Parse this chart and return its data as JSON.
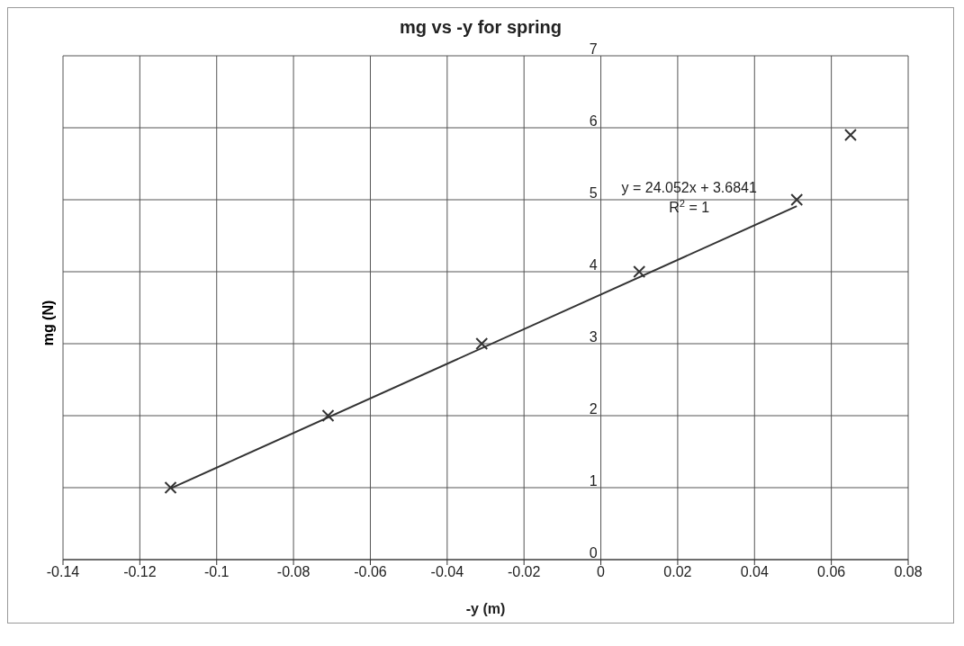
{
  "chart_data": {
    "type": "scatter",
    "title": "mg vs -y for spring",
    "xlabel": "-y (m)",
    "ylabel": "mg (N)",
    "xlim": [
      -0.14,
      0.08
    ],
    "xticks": [
      -0.14,
      -0.12,
      -0.1,
      -0.08,
      -0.06,
      -0.04,
      -0.02,
      0,
      0.02,
      0.04,
      0.06,
      0.08
    ],
    "ylim": [
      0,
      7
    ],
    "yticks": [
      0,
      1,
      2,
      3,
      4,
      5,
      6,
      7
    ],
    "grid": true,
    "series": [
      {
        "marker": "cross",
        "color": "#333333",
        "x": [
          -0.112,
          -0.071,
          -0.031,
          0.01,
          0.051,
          0.065
        ],
        "values": [
          1,
          2,
          3,
          4,
          5,
          5.9
        ]
      },
      {
        "type": "line",
        "marker": "none",
        "color": "#333333",
        "line_style": "solid",
        "x": [
          -0.112,
          0.051
        ],
        "values": [
          0.99,
          4.91
        ]
      }
    ],
    "annotations": [
      "y = 24.052x + 3.6841",
      "R$^{2}$ = 1"
    ]
  }
}
